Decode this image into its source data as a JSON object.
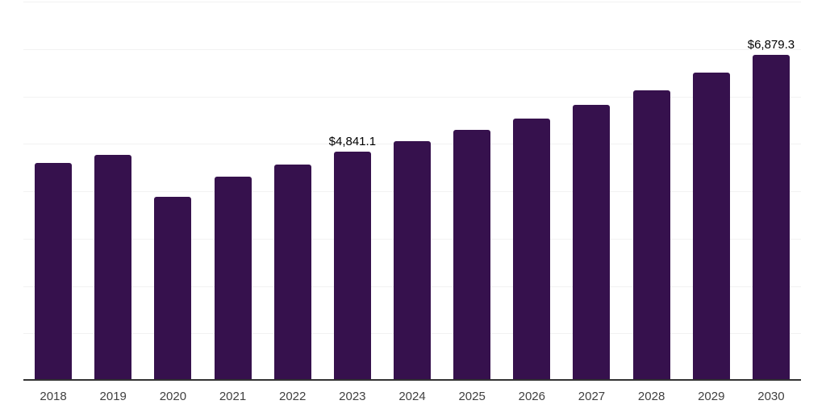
{
  "chart": {
    "background_color": "#ffffff",
    "bar_color": "#36114d",
    "gridline_color": "#f2f2f2",
    "axis_line_color": "#333333",
    "tick_label_color": "#404040",
    "data_label_color": "#000000"
  },
  "chart_data": {
    "type": "bar",
    "title": "",
    "xlabel": "",
    "ylabel": "",
    "categories": [
      "2018",
      "2019",
      "2020",
      "2021",
      "2022",
      "2023",
      "2024",
      "2025",
      "2026",
      "2027",
      "2028",
      "2029",
      "2030"
    ],
    "values": [
      4590,
      4760,
      3875,
      4300,
      4565,
      4841.1,
      5060,
      5290,
      5540,
      5825,
      6135,
      6495,
      6879.3
    ],
    "data_labels": {
      "2023": "$4,841.1",
      "2030": "$6,879.3"
    },
    "ylim": [
      0,
      8000
    ],
    "gridline_interval": 1000,
    "grid": "horizontal gridlines only, no y-axis tick labels",
    "legend": "none",
    "values_note": "bars without on-chart labels are estimated from gridline positions; only 2023 and 2030 display data labels"
  }
}
